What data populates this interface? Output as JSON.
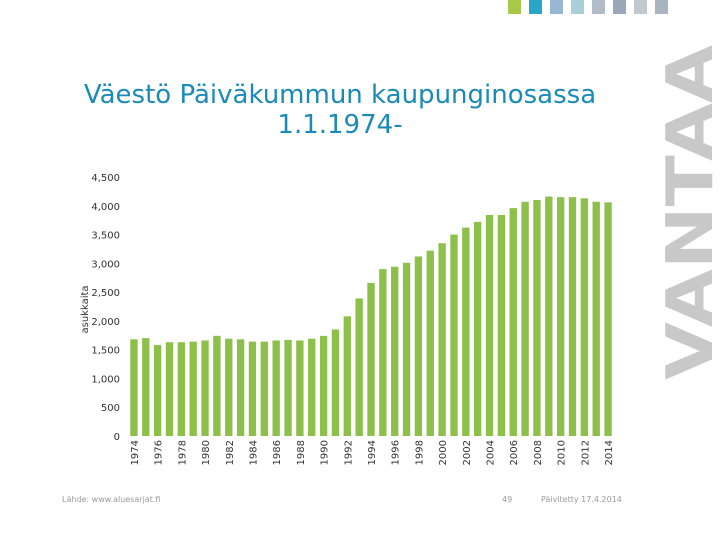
{
  "slide": {
    "title_line1": "Väestö Päiväkummun kaupunginosassa",
    "title_line2": "1.1.1974-",
    "brand_text": "VANTAA",
    "source": "Lähde: www.aluesarjat.fi",
    "page_number": "49",
    "updated": "Päivitetty 17.4.2014"
  },
  "colors": {
    "bar": "#8dc04a",
    "title": "#1a8bb8",
    "brand": "#c8c8c8",
    "corner_squares": [
      "#a8c84a",
      "#2aa5c8",
      "#98b7d3",
      "#a9d0d6",
      "#b0bcc8",
      "#9aa8b8",
      "#c0c8d0",
      "#a8b4c0"
    ]
  },
  "chart_data": {
    "type": "bar",
    "ylabel": "asukkaita",
    "ylim": [
      0,
      4500
    ],
    "yticks": [
      0,
      500,
      1000,
      1500,
      2000,
      2500,
      3000,
      3500,
      4000,
      4500
    ],
    "ytick_labels": [
      "0",
      "500",
      "1,000",
      "1,500",
      "2,000",
      "2,500",
      "3,000",
      "3,500",
      "4,000",
      "4,500"
    ],
    "grid": false,
    "categories": [
      1974,
      1975,
      1976,
      1977,
      1978,
      1979,
      1980,
      1981,
      1982,
      1983,
      1984,
      1985,
      1986,
      1987,
      1988,
      1989,
      1990,
      1991,
      1992,
      1993,
      1994,
      1995,
      1996,
      1997,
      1998,
      1999,
      2000,
      2001,
      2002,
      2003,
      2004,
      2005,
      2006,
      2007,
      2008,
      2009,
      2010,
      2011,
      2012,
      2013,
      2014
    ],
    "xtick_labels": [
      "1974",
      "1976",
      "1978",
      "1980",
      "1982",
      "1984",
      "1986",
      "1988",
      "1990",
      "1992",
      "1994",
      "1996",
      "1998",
      "2000",
      "2002",
      "2004",
      "2006",
      "2008",
      "2010",
      "2012",
      "2014"
    ],
    "values": [
      1680,
      1700,
      1580,
      1630,
      1630,
      1640,
      1660,
      1740,
      1690,
      1680,
      1640,
      1640,
      1660,
      1670,
      1660,
      1690,
      1740,
      1850,
      2080,
      2390,
      2660,
      2900,
      2940,
      3010,
      3120,
      3220,
      3350,
      3500,
      3620,
      3720,
      3840,
      3840,
      3960,
      4070,
      4100,
      4160,
      4150,
      4150,
      4130,
      4070,
      4060
    ]
  }
}
